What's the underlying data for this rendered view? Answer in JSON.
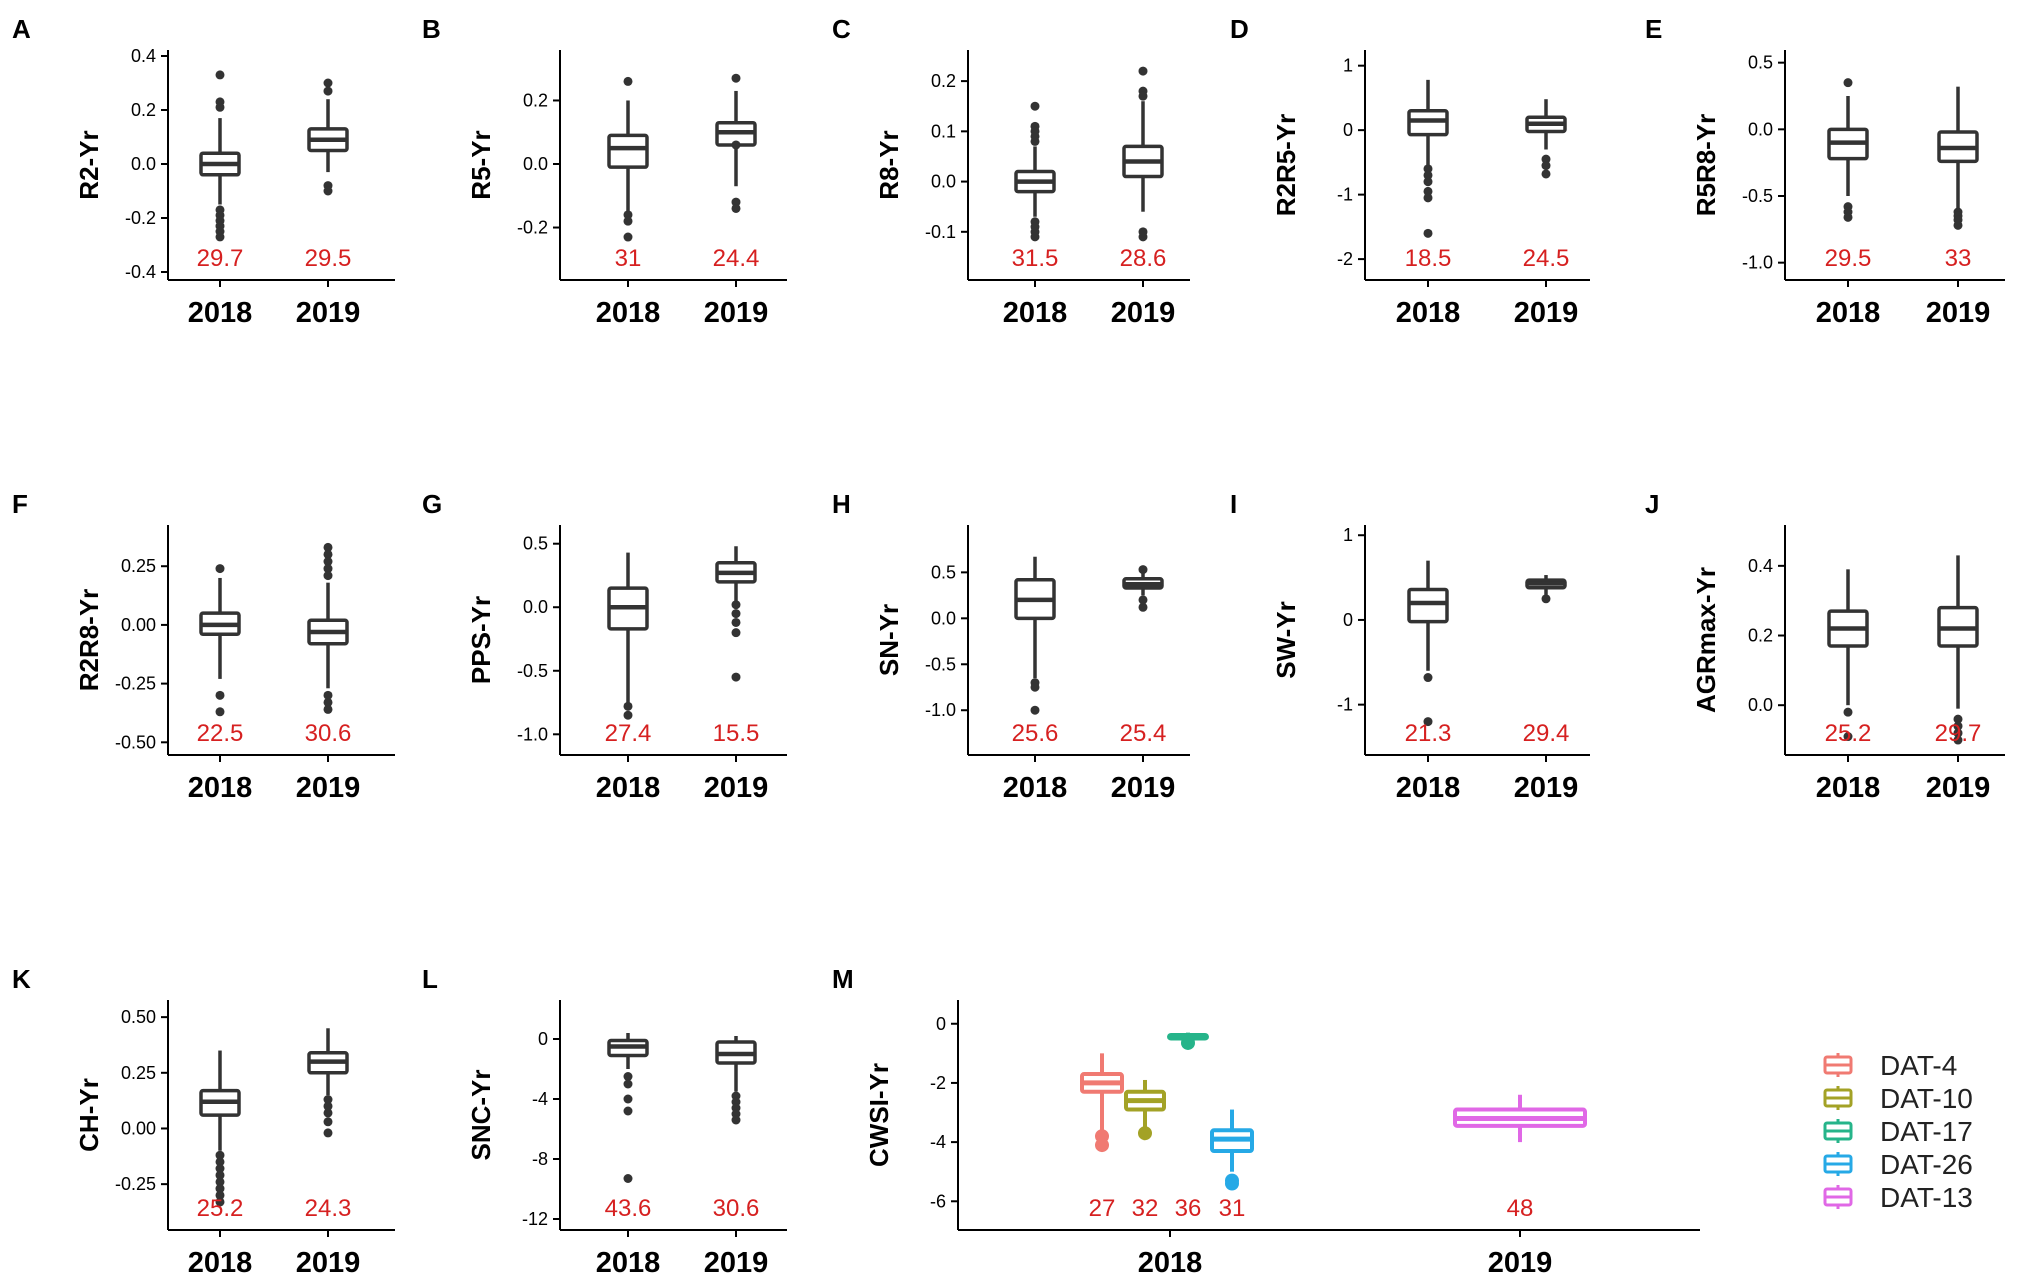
{
  "chart_data": [
    {
      "panel": "A",
      "type": "box",
      "ylabel": "R2-Yr",
      "categories": [
        "2018",
        "2019"
      ],
      "ylim": [
        -0.4,
        0.4
      ],
      "yticks": [
        -0.4,
        -0.2,
        0.0,
        0.2,
        0.4
      ],
      "ytick_labels": [
        "-0.4",
        "-0.2",
        "0.0",
        "0.2",
        "0.4"
      ],
      "boxes": [
        {
          "cat": "2018",
          "color": "#333333",
          "lo": -0.15,
          "q1": -0.04,
          "med": 0.0,
          "q3": 0.04,
          "hi": 0.17,
          "outliers": [
            0.33,
            0.23,
            0.21,
            -0.17,
            -0.19,
            -0.21,
            -0.23,
            -0.25,
            -0.27
          ],
          "h2": "29.7"
        },
        {
          "cat": "2019",
          "color": "#333333",
          "lo": -0.03,
          "q1": 0.05,
          "med": 0.09,
          "q3": 0.13,
          "hi": 0.24,
          "outliers": [
            0.3,
            0.27,
            -0.08,
            -0.1
          ],
          "h2": "29.5"
        }
      ]
    },
    {
      "panel": "B",
      "type": "box",
      "ylabel": "R5-Yr",
      "categories": [
        "2018",
        "2019"
      ],
      "ylim": [
        -0.34,
        0.34
      ],
      "yticks": [
        -0.2,
        0.0,
        0.2
      ],
      "ytick_labels": [
        "-0.2",
        "0.0",
        "0.2"
      ],
      "boxes": [
        {
          "cat": "2018",
          "color": "#333333",
          "lo": -0.15,
          "q1": -0.01,
          "med": 0.05,
          "q3": 0.09,
          "hi": 0.2,
          "outliers": [
            0.26,
            -0.16,
            -0.18,
            -0.23
          ],
          "h2": "31"
        },
        {
          "cat": "2019",
          "color": "#333333",
          "lo": -0.07,
          "q1": 0.06,
          "med": 0.1,
          "q3": 0.13,
          "hi": 0.23,
          "outliers": [
            0.27,
            0.06,
            -0.12,
            -0.14
          ],
          "h2": "24.4"
        }
      ]
    },
    {
      "panel": "C",
      "type": "box",
      "ylabel": "R8-Yr",
      "categories": [
        "2018",
        "2019"
      ],
      "ylim": [
        -0.18,
        0.25
      ],
      "yticks": [
        -0.1,
        0.0,
        0.1,
        0.2
      ],
      "ytick_labels": [
        "-0.1",
        "0.0",
        "0.1",
        "0.2"
      ],
      "boxes": [
        {
          "cat": "2018",
          "color": "#333333",
          "lo": -0.07,
          "q1": -0.02,
          "med": 0.0,
          "q3": 0.02,
          "hi": 0.07,
          "outliers": [
            0.15,
            0.11,
            0.1,
            0.09,
            0.08,
            -0.08,
            -0.09,
            -0.1,
            -0.11
          ],
          "h2": "31.5"
        },
        {
          "cat": "2019",
          "color": "#333333",
          "lo": -0.06,
          "q1": 0.01,
          "med": 0.04,
          "q3": 0.07,
          "hi": 0.16,
          "outliers": [
            0.22,
            0.18,
            0.17,
            -0.1,
            -0.11
          ],
          "h2": "28.6"
        }
      ]
    },
    {
      "panel": "D",
      "type": "box",
      "ylabel": "R2R5-Yr",
      "categories": [
        "2018",
        "2019"
      ],
      "ylim": [
        -2.2,
        1.15
      ],
      "yticks": [
        -2,
        -1,
        0,
        1
      ],
      "ytick_labels": [
        "-2",
        "-1",
        "0",
        "1"
      ],
      "boxes": [
        {
          "cat": "2018",
          "color": "#333333",
          "lo": -0.55,
          "q1": -0.07,
          "med": 0.15,
          "q3": 0.3,
          "hi": 0.78,
          "outliers": [
            -0.6,
            -0.7,
            -0.8,
            -0.95,
            -1.05,
            -1.6
          ],
          "h2": "18.5"
        },
        {
          "cat": "2019",
          "color": "#333333",
          "lo": -0.3,
          "q1": -0.02,
          "med": 0.1,
          "q3": 0.2,
          "hi": 0.48,
          "outliers": [
            -0.45,
            -0.55,
            -0.68
          ],
          "h2": "24.5"
        }
      ]
    },
    {
      "panel": "E",
      "type": "box",
      "ylabel": "R5R8-Yr",
      "categories": [
        "2018",
        "2019"
      ],
      "ylim": [
        -1.07,
        0.55
      ],
      "yticks": [
        -1.0,
        -0.5,
        0.0,
        0.5
      ],
      "ytick_labels": [
        "-1.0",
        "-0.5",
        "0.0",
        "0.5"
      ],
      "boxes": [
        {
          "cat": "2018",
          "color": "#333333",
          "lo": -0.5,
          "q1": -0.22,
          "med": -0.1,
          "q3": 0.0,
          "hi": 0.25,
          "outliers": [
            0.35,
            -0.58,
            -0.62,
            -0.66
          ],
          "h2": "29.5"
        },
        {
          "cat": "2019",
          "color": "#333333",
          "lo": -0.6,
          "q1": -0.24,
          "med": -0.14,
          "q3": -0.02,
          "hi": 0.32,
          "outliers": [
            -0.62,
            -0.65,
            -0.68,
            -0.72
          ],
          "h2": "33"
        }
      ]
    },
    {
      "panel": "F",
      "type": "box",
      "ylabel": "R2R8-Yr",
      "categories": [
        "2018",
        "2019"
      ],
      "ylim": [
        -0.52,
        0.4
      ],
      "yticks": [
        -0.5,
        -0.25,
        0.0,
        0.25
      ],
      "ytick_labels": [
        "-0.50",
        "-0.25",
        "0.00",
        "0.25"
      ],
      "boxes": [
        {
          "cat": "2018",
          "color": "#333333",
          "lo": -0.23,
          "q1": -0.04,
          "med": 0.0,
          "q3": 0.05,
          "hi": 0.2,
          "outliers": [
            0.24,
            -0.3,
            -0.37
          ],
          "h2": "22.5"
        },
        {
          "cat": "2019",
          "color": "#333333",
          "lo": -0.27,
          "q1": -0.08,
          "med": -0.03,
          "q3": 0.02,
          "hi": 0.18,
          "outliers": [
            0.33,
            0.3,
            0.27,
            0.24,
            0.21,
            -0.3,
            -0.33,
            -0.36
          ],
          "h2": "30.6"
        }
      ]
    },
    {
      "panel": "G",
      "type": "box",
      "ylabel": "PPS-Yr",
      "categories": [
        "2018",
        "2019"
      ],
      "ylim": [
        -1.1,
        0.6
      ],
      "yticks": [
        -1.0,
        -0.5,
        0.0,
        0.5
      ],
      "ytick_labels": [
        "-1.0",
        "-0.5",
        "0.0",
        "0.5"
      ],
      "boxes": [
        {
          "cat": "2018",
          "color": "#333333",
          "lo": -0.75,
          "q1": -0.17,
          "med": 0.0,
          "q3": 0.15,
          "hi": 0.43,
          "outliers": [
            -0.78,
            -0.85
          ],
          "h2": "27.4"
        },
        {
          "cat": "2019",
          "color": "#333333",
          "lo": 0.05,
          "q1": 0.2,
          "med": 0.27,
          "q3": 0.35,
          "hi": 0.48,
          "outliers": [
            0.02,
            -0.05,
            -0.12,
            -0.2,
            -0.55
          ],
          "h2": "15.5"
        }
      ]
    },
    {
      "panel": "H",
      "type": "box",
      "ylabel": "SN-Yr",
      "categories": [
        "2018",
        "2019"
      ],
      "ylim": [
        -1.4,
        0.95
      ],
      "yticks": [
        -1.0,
        -0.5,
        0.0,
        0.5
      ],
      "ytick_labels": [
        "-1.0",
        "-0.5",
        "0.0",
        "0.5"
      ],
      "boxes": [
        {
          "cat": "2018",
          "color": "#333333",
          "lo": -0.65,
          "q1": 0.0,
          "med": 0.2,
          "q3": 0.42,
          "hi": 0.67,
          "outliers": [
            -0.7,
            -0.75,
            -1.0
          ],
          "h2": "25.6"
        },
        {
          "cat": "2019",
          "color": "#333333",
          "lo": 0.25,
          "q1": 0.33,
          "med": 0.37,
          "q3": 0.43,
          "hi": 0.5,
          "outliers": [
            0.12,
            0.2,
            0.53
          ],
          "h2": "25.4"
        }
      ]
    },
    {
      "panel": "I",
      "type": "box",
      "ylabel": "SW-Yr",
      "categories": [
        "2018",
        "2019"
      ],
      "ylim": [
        -1.5,
        1.05
      ],
      "yticks": [
        -1,
        0,
        1
      ],
      "ytick_labels": [
        "-1",
        "0",
        "1"
      ],
      "boxes": [
        {
          "cat": "2018",
          "color": "#333333",
          "lo": -0.6,
          "q1": -0.02,
          "med": 0.2,
          "q3": 0.36,
          "hi": 0.7,
          "outliers": [
            -0.68,
            -1.2
          ],
          "h2": "21.3"
        },
        {
          "cat": "2019",
          "color": "#333333",
          "lo": 0.3,
          "q1": 0.38,
          "med": 0.43,
          "q3": 0.47,
          "hi": 0.53,
          "outliers": [
            0.25
          ],
          "h2": "29.4"
        }
      ]
    },
    {
      "panel": "J",
      "type": "box",
      "ylabel": "AGRmax-Yr",
      "categories": [
        "2018",
        "2019"
      ],
      "ylim": [
        -0.12,
        0.5
      ],
      "yticks": [
        0.0,
        0.2,
        0.4
      ],
      "ytick_labels": [
        "0.0",
        "0.2",
        "0.4"
      ],
      "boxes": [
        {
          "cat": "2018",
          "color": "#333333",
          "lo": 0.0,
          "q1": 0.17,
          "med": 0.22,
          "q3": 0.27,
          "hi": 0.39,
          "outliers": [
            -0.02,
            -0.09
          ],
          "h2": "25.2"
        },
        {
          "cat": "2019",
          "color": "#333333",
          "lo": -0.01,
          "q1": 0.17,
          "med": 0.22,
          "q3": 0.28,
          "hi": 0.43,
          "outliers": [
            -0.04,
            -0.06,
            -0.08,
            -0.1
          ],
          "h2": "29.7"
        }
      ]
    },
    {
      "panel": "K",
      "type": "box",
      "ylabel": "CH-Yr",
      "categories": [
        "2018",
        "2019"
      ],
      "ylim": [
        -0.42,
        0.55
      ],
      "yticks": [
        -0.25,
        0.0,
        0.25,
        0.5
      ],
      "ytick_labels": [
        "-0.25",
        "0.00",
        "0.25",
        "0.50"
      ],
      "boxes": [
        {
          "cat": "2018",
          "color": "#333333",
          "lo": -0.1,
          "q1": 0.06,
          "med": 0.12,
          "q3": 0.17,
          "hi": 0.35,
          "outliers": [
            -0.12,
            -0.15,
            -0.18,
            -0.21,
            -0.24,
            -0.27,
            -0.3,
            -0.33
          ],
          "h2": "25.2"
        },
        {
          "cat": "2019",
          "color": "#333333",
          "lo": 0.15,
          "q1": 0.25,
          "med": 0.3,
          "q3": 0.34,
          "hi": 0.45,
          "outliers": [
            0.13,
            0.1,
            0.07,
            0.03,
            -0.02
          ],
          "h2": "24.3"
        }
      ]
    },
    {
      "panel": "L",
      "type": "box",
      "ylabel": "SNC-Yr",
      "categories": [
        "2018",
        "2019"
      ],
      "ylim": [
        -12.2,
        2.2
      ],
      "yticks": [
        -12,
        -8,
        -4,
        0
      ],
      "ytick_labels": [
        "-12",
        "-8",
        "-4",
        "0"
      ],
      "boxes": [
        {
          "cat": "2018",
          "color": "#333333",
          "lo": -2.0,
          "q1": -1.1,
          "med": -0.5,
          "q3": -0.1,
          "hi": 0.4,
          "outliers": [
            -2.5,
            -3.0,
            -4.0,
            -4.8,
            -9.3
          ],
          "h2": "43.6"
        },
        {
          "cat": "2019",
          "color": "#333333",
          "lo": -3.5,
          "q1": -1.6,
          "med": -1.0,
          "q3": -0.2,
          "hi": 0.2,
          "outliers": [
            -3.8,
            -4.2,
            -4.6,
            -5.0,
            -5.4
          ],
          "h2": "30.6"
        }
      ]
    },
    {
      "panel": "M",
      "type": "box",
      "ylabel": "CWSI-Yr",
      "categories": [
        "2018",
        "2019"
      ],
      "ylim": [
        -6.7,
        0.6
      ],
      "yticks": [
        -6,
        -4,
        -2,
        0
      ],
      "ytick_labels": [
        "-6",
        "-4",
        "-2",
        "0"
      ],
      "boxes": [
        {
          "cat": "2018",
          "group": "DAT-4",
          "color": "#f07a72",
          "lo": -3.6,
          "q1": -2.3,
          "med": -2.0,
          "q3": -1.7,
          "hi": -1.0,
          "outliers": [
            -3.8,
            -4.1
          ],
          "h2": "27"
        },
        {
          "cat": "2018",
          "group": "DAT-10",
          "color": "#a3a226",
          "lo": -3.5,
          "q1": -2.9,
          "med": -2.6,
          "q3": -2.3,
          "hi": -1.9,
          "outliers": [
            -3.7
          ],
          "h2": "32"
        },
        {
          "cat": "2018",
          "group": "DAT-17",
          "color": "#26b48a",
          "lo": -0.6,
          "q1": -0.5,
          "med": -0.45,
          "q3": -0.38,
          "hi": -0.3,
          "outliers": [
            -0.65
          ],
          "h2": "36"
        },
        {
          "cat": "2018",
          "group": "DAT-26",
          "color": "#26a9e6",
          "lo": -5.0,
          "q1": -4.3,
          "med": -3.9,
          "q3": -3.6,
          "hi": -2.9,
          "outliers": [
            -5.3,
            -5.4
          ],
          "h2": "31"
        },
        {
          "cat": "2019",
          "group": "DAT-13",
          "color": "#e068e6",
          "lo": -4.0,
          "q1": -3.45,
          "med": -3.2,
          "q3": -2.9,
          "hi": -2.4,
          "outliers": [],
          "h2": "48"
        }
      ],
      "legend": [
        {
          "label": "DAT-4",
          "color": "#f07a72"
        },
        {
          "label": "DAT-10",
          "color": "#a3a226"
        },
        {
          "label": "DAT-17",
          "color": "#26b48a"
        },
        {
          "label": "DAT-26",
          "color": "#26a9e6"
        },
        {
          "label": "DAT-13",
          "color": "#e068e6"
        }
      ]
    }
  ]
}
